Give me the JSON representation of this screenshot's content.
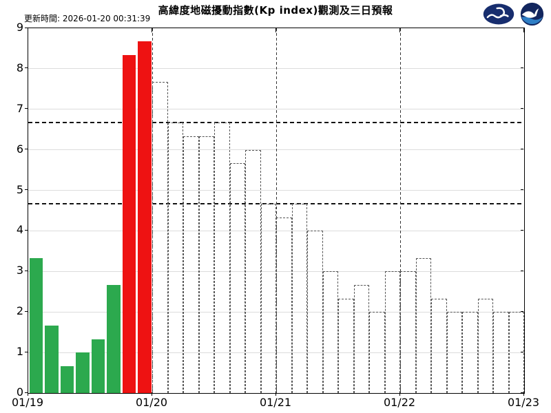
{
  "header": {
    "title": "高緯度地磁擾動指數(Kp index)觀測及三日預報",
    "update_time": "更新時間: 2026-01-20 00:31:39",
    "logos": [
      "cwa-logo",
      "noaa-logo"
    ]
  },
  "chart_data": {
    "type": "bar",
    "title": "高緯度地磁擾動指數(Kp index)觀測及三日預報",
    "update_time": "更新時間: 2026-01-20 00:31:39",
    "ylim": [
      0,
      9
    ],
    "grid": "on",
    "y_tick_labels": [
      "0",
      "1",
      "2",
      "3",
      "4",
      "5",
      "6",
      "7",
      "8",
      "9"
    ],
    "x_tick_labels": [
      "01/19",
      "01/20",
      "01/21",
      "01/22",
      "01/23"
    ],
    "slots_per_day": 8,
    "threshold_lines": [
      4.67,
      6.67
    ],
    "day_boundary_lines": [
      "01/20",
      "01/21",
      "01/22"
    ],
    "series": [
      {
        "name": "observed",
        "date": "01/19",
        "style": "solid",
        "values": [
          3.33,
          1.67,
          0.67,
          1.0,
          1.33,
          2.67,
          8.33,
          8.67
        ],
        "bar_colors": [
          "#2ca94e",
          "#2ca94e",
          "#2ca94e",
          "#2ca94e",
          "#2ca94e",
          "#2ca94e",
          "#ee1212",
          "#ee1212"
        ]
      },
      {
        "name": "forecast-day1",
        "date": "01/20",
        "style": "dashed-outline",
        "values": [
          7.67,
          6.67,
          6.33,
          6.33,
          6.67,
          5.67,
          6.0,
          4.67
        ]
      },
      {
        "name": "forecast-day2",
        "date": "01/21",
        "style": "dashed-outline",
        "values": [
          4.33,
          4.67,
          4.0,
          3.0,
          2.33,
          2.67,
          2.0,
          3.0
        ]
      },
      {
        "name": "forecast-day3",
        "date": "01/22",
        "style": "dashed-outline",
        "values": [
          3.0,
          3.33,
          2.33,
          2.0,
          2.0,
          2.33,
          2.0,
          2.0
        ]
      }
    ],
    "colors": {
      "observed_normal": "#2ca94e",
      "observed_storm": "#ee1212",
      "forecast_outline": "#555555",
      "grid": "#dcdcdc",
      "threshold": "#111111",
      "cwa_logo_navy": "#172d6e",
      "noaa_navy": "#12265e",
      "noaa_light_blue": "#2e7ec5"
    }
  }
}
